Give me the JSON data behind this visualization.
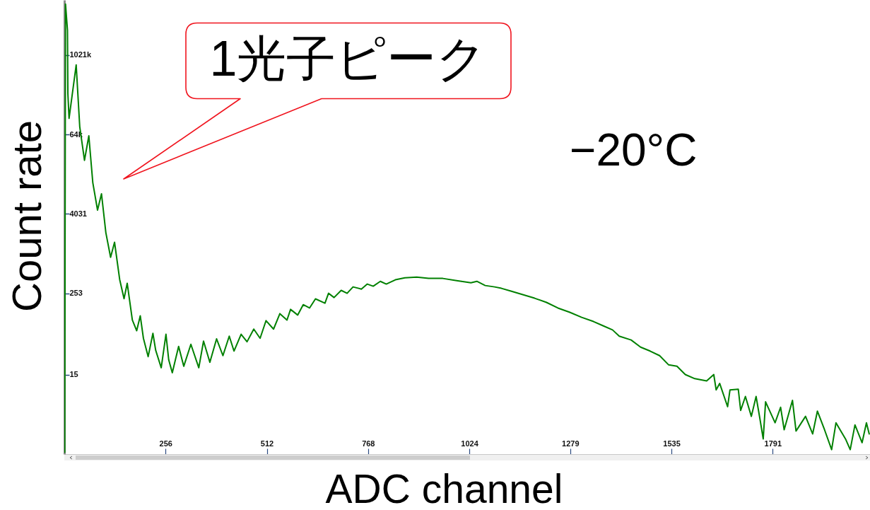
{
  "chart_data": {
    "type": "line",
    "xlabel": "ADC channel",
    "ylabel": "Count rate",
    "annotations": [
      "1光子ピーク",
      "−20°C"
    ],
    "x": [
      1,
      3,
      8,
      9,
      12,
      30,
      39,
      51,
      62,
      72,
      84,
      94,
      105,
      117,
      127,
      140,
      151,
      159,
      172,
      183,
      192,
      200,
      212,
      224,
      231,
      245,
      257,
      264,
      273,
      289,
      302,
      320,
      340,
      352,
      368,
      385,
      401,
      417,
      429,
      447,
      462,
      479,
      495,
      510,
      529,
      545,
      563,
      572,
      590,
      604,
      620,
      635,
      659,
      668,
      682,
      700,
      715,
      730,
      751,
      766,
      781,
      799,
      814,
      837,
      861,
      891,
      921,
      957,
      992,
      1028,
      1043,
      1064,
      1088,
      1105,
      1129,
      1159,
      1189,
      1219,
      1248,
      1278,
      1308,
      1338,
      1362,
      1386,
      1403,
      1433,
      1457,
      1481,
      1505,
      1528,
      1549,
      1570,
      1594,
      1624,
      1642,
      1648,
      1657,
      1677,
      1683,
      1704,
      1710,
      1722,
      1737,
      1749,
      1758,
      1767,
      1773,
      1797,
      1811,
      1820,
      1841,
      1850,
      1874,
      1892,
      1904,
      1922,
      1940,
      1951,
      1975,
      1987,
      1999,
      2017,
      2028,
      2035
    ],
    "values": [
      1,
      6000000,
      2400000,
      265000,
      112000,
      720000,
      84000,
      26000,
      61000,
      12000,
      4600,
      8100,
      2100,
      890,
      1500,
      410,
      210,
      360,
      100,
      69,
      116,
      53,
      28,
      63,
      35,
      19,
      61,
      25,
      16,
      40,
      20,
      43,
      19,
      48,
      23,
      52,
      29,
      57,
      34,
      61,
      47,
      73,
      53,
      98,
      73,
      125,
      100,
      145,
      119,
      171,
      152,
      209,
      180,
      254,
      219,
      281,
      254,
      317,
      294,
      350,
      325,
      385,
      350,
      406,
      436,
      447,
      426,
      426,
      395,
      367,
      385,
      333,
      317,
      302,
      274,
      242,
      214,
      185,
      152,
      131,
      110,
      95,
      82,
      71,
      57,
      50,
      39,
      34,
      29,
      21,
      20,
      15,
      13,
      12,
      15,
      8.8,
      11,
      4.9,
      8.8,
      9,
      4.3,
      7,
      3.5,
      7,
      3.4,
      1.6,
      5.8,
      2.8,
      4.8,
      2.2,
      6.1,
      2.1,
      3.5,
      1.9,
      4.2,
      2.2,
      1.1,
      2.8,
      1.6,
      1.1,
      2.6,
      1.4,
      2.8,
      1.9
    ],
    "color": "#008000",
    "xlim": [
      0,
      2037
    ],
    "ylim": [
      0.94,
      6900000
    ],
    "xticks": [
      256,
      512,
      768,
      1024,
      1279,
      1535,
      1791
    ],
    "yticks": [
      15,
      253,
      4031,
      {
        "value": 64000,
        "label": "64k"
      },
      {
        "value": 1021000,
        "label": "1021k"
      }
    ],
    "log": "y"
  }
}
